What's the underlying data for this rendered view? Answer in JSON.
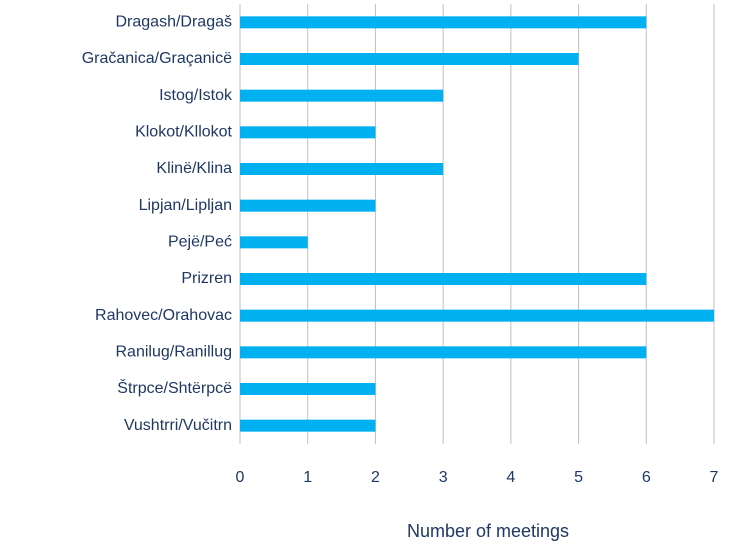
{
  "chart_data": {
    "type": "barh",
    "categories": [
      "Dragash/Dragaš",
      "Gračanica/Graçanicë",
      "Istog/Istok",
      "Klokot/Kllokot",
      "Klinë/Klina",
      "Lipjan/Lipljan",
      "Pejë/Peć",
      "Prizren",
      "Rahovec/Orahovac",
      "Ranilug/Ranillug",
      "Štrpce/Shtërpcë",
      "Vushtrri/Vučitrn"
    ],
    "values": [
      6,
      5,
      3,
      2,
      3,
      2,
      1,
      6,
      7,
      6,
      2,
      2
    ],
    "color": "#00b0f0",
    "xlim": [
      0,
      7
    ],
    "xticks": [
      0,
      1,
      2,
      3,
      4,
      5,
      6,
      7
    ],
    "x_label": "Number of meetings",
    "grid": true
  }
}
